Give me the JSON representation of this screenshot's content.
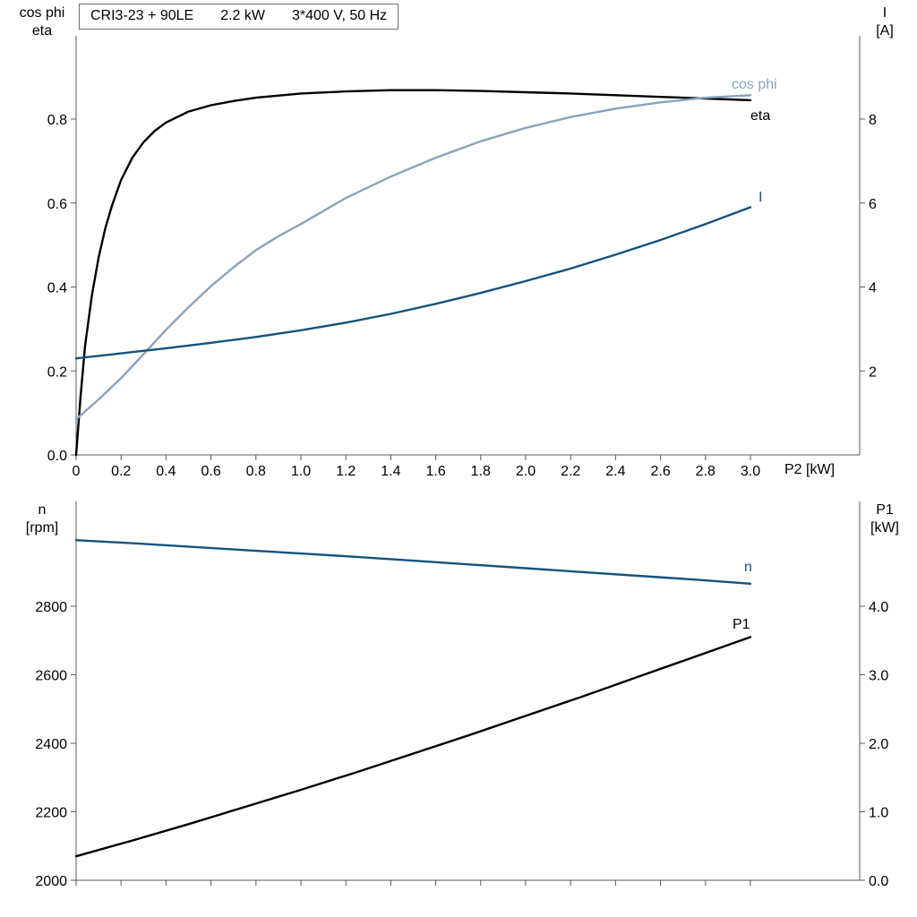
{
  "title": {
    "parts": [
      "CRI3-23 + 90LE",
      "2.2 kW",
      "3*400 V, 50 Hz"
    ]
  },
  "colors": {
    "black": "#000000",
    "dark_blue": "#14537e",
    "light_blue": "#8aa3bc",
    "axis": "#5a5a5a"
  },
  "chart_data": [
    {
      "type": "line",
      "xlabel": "P2 [kW]",
      "left_axis_label_lines": [
        "cos phi",
        "eta"
      ],
      "right_axis_label_lines": [
        "I",
        "[A]"
      ],
      "x_range": [
        0,
        3.5
      ],
      "left_range": [
        0,
        1.0
      ],
      "right_range": [
        0,
        10.0
      ],
      "grid": false,
      "x_ticks": [
        0,
        0.2,
        0.4,
        0.6,
        0.8,
        1.0,
        1.2,
        1.4,
        1.6,
        1.8,
        2.0,
        2.2,
        2.4,
        2.6,
        2.8,
        3.0
      ],
      "x_tick_labels": [
        "0",
        "0.2",
        "0.4",
        "0.6",
        "0.8",
        "1.0",
        "1.2",
        "1.4",
        "1.6",
        "1.8",
        "2.0",
        "2.2",
        "2.4",
        "2.6",
        "2.8",
        "3.0"
      ],
      "left_ticks": [
        0.0,
        0.2,
        0.4,
        0.6,
        0.8
      ],
      "left_tick_labels": [
        "0.0",
        "0.2",
        "0.4",
        "0.6",
        "0.8"
      ],
      "right_ticks": [
        2,
        4,
        6,
        8
      ],
      "right_tick_labels": [
        "2",
        "4",
        "6",
        "8"
      ],
      "series": [
        {
          "name": "eta",
          "axis": "left",
          "color": "black",
          "x": [
            0,
            0.02,
            0.04,
            0.07,
            0.1,
            0.13,
            0.16,
            0.2,
            0.25,
            0.3,
            0.35,
            0.4,
            0.5,
            0.6,
            0.7,
            0.8,
            1.0,
            1.2,
            1.4,
            1.6,
            1.8,
            2.0,
            2.2,
            2.4,
            2.6,
            2.8,
            3.0
          ],
          "values": [
            0,
            0.14,
            0.26,
            0.38,
            0.47,
            0.54,
            0.595,
            0.655,
            0.708,
            0.745,
            0.772,
            0.792,
            0.818,
            0.833,
            0.843,
            0.851,
            0.861,
            0.866,
            0.869,
            0.869,
            0.867,
            0.864,
            0.861,
            0.857,
            0.853,
            0.849,
            0.845
          ]
        },
        {
          "name": "cos phi",
          "axis": "left",
          "color": "light_blue",
          "x": [
            0,
            0.1,
            0.2,
            0.3,
            0.4,
            0.5,
            0.6,
            0.7,
            0.8,
            0.9,
            1.0,
            1.2,
            1.4,
            1.6,
            1.8,
            2.0,
            2.2,
            2.4,
            2.6,
            2.8,
            3.0
          ],
          "values": [
            0.085,
            0.132,
            0.183,
            0.24,
            0.298,
            0.352,
            0.402,
            0.447,
            0.488,
            0.521,
            0.55,
            0.612,
            0.663,
            0.708,
            0.747,
            0.779,
            0.805,
            0.825,
            0.84,
            0.851,
            0.857
          ]
        },
        {
          "name": "I",
          "axis": "right",
          "color": "dark_blue",
          "x": [
            0,
            0.2,
            0.4,
            0.6,
            0.8,
            1.0,
            1.2,
            1.4,
            1.6,
            1.8,
            2.0,
            2.2,
            2.4,
            2.6,
            2.8,
            3.0
          ],
          "values": [
            2.3,
            2.42,
            2.54,
            2.67,
            2.81,
            2.97,
            3.15,
            3.36,
            3.6,
            3.86,
            4.14,
            4.44,
            4.77,
            5.12,
            5.5,
            5.9
          ]
        }
      ]
    },
    {
      "type": "line",
      "xlabel": "",
      "left_axis_label_lines": [
        "n",
        "[rpm]"
      ],
      "right_axis_label_lines": [
        "P1",
        "[kW]"
      ],
      "x_range": [
        0,
        3.5
      ],
      "left_range": [
        2000,
        3100
      ],
      "right_range": [
        0,
        5.5
      ],
      "grid": false,
      "x_ticks": [
        0,
        0.2,
        0.4,
        0.6,
        0.8,
        1.0,
        1.2,
        1.4,
        1.6,
        1.8,
        2.0,
        2.2,
        2.4,
        2.6,
        2.8,
        3.0
      ],
      "x_tick_labels": [],
      "left_ticks": [
        2000,
        2200,
        2400,
        2600,
        2800
      ],
      "left_tick_labels": [
        "2000",
        "2200",
        "2400",
        "2600",
        "2800"
      ],
      "right_ticks": [
        0.0,
        1.0,
        2.0,
        3.0,
        4.0
      ],
      "right_tick_labels": [
        "0.0",
        "1.0",
        "2.0",
        "3.0",
        "4.0"
      ],
      "series": [
        {
          "name": "n",
          "axis": "left",
          "color": "dark_blue",
          "x": [
            0,
            0.25,
            0.5,
            0.75,
            1.0,
            1.25,
            1.5,
            1.75,
            2.0,
            2.25,
            2.5,
            2.75,
            3.0
          ],
          "values": [
            2993,
            2984,
            2974,
            2964,
            2954,
            2944,
            2933,
            2922,
            2911,
            2900,
            2889,
            2878,
            2866
          ]
        },
        {
          "name": "P1",
          "axis": "right",
          "color": "black",
          "x": [
            0,
            0.25,
            0.5,
            0.75,
            1.0,
            1.25,
            1.5,
            1.75,
            2.0,
            2.25,
            2.5,
            2.75,
            3.0
          ],
          "values": [
            0.35,
            0.58,
            0.82,
            1.07,
            1.32,
            1.58,
            1.85,
            2.12,
            2.4,
            2.68,
            2.97,
            3.26,
            3.55
          ]
        }
      ]
    }
  ]
}
